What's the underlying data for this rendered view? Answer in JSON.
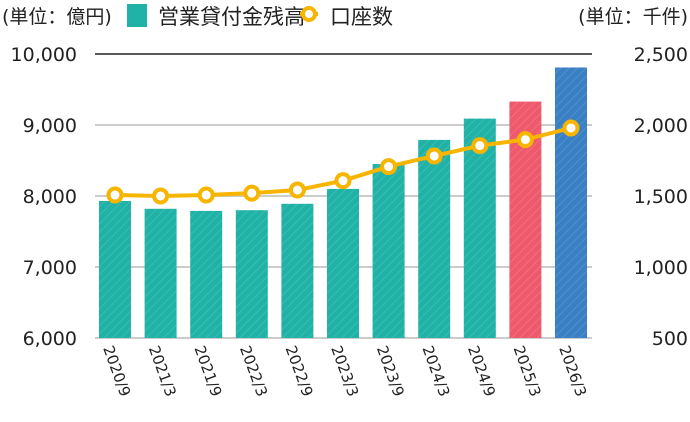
{
  "chart_data": {
    "type": "bar+line",
    "left_unit": "(単位：億円)",
    "right_unit": "(単位：千件)",
    "categories": [
      "2020/9",
      "2021/3",
      "2021/9",
      "2022/3",
      "2022/9",
      "2023/3",
      "2023/9",
      "2024/3",
      "2024/9",
      "2025/3",
      "2026/3"
    ],
    "series": [
      {
        "name": "営業貸付金残高",
        "type": "bar",
        "axis": "left",
        "values": [
          7930,
          7820,
          7790,
          7800,
          7890,
          8100,
          8450,
          8790,
          9090,
          9330,
          9810
        ],
        "colors": [
          "#20b2a6",
          "#20b2a6",
          "#20b2a6",
          "#20b2a6",
          "#20b2a6",
          "#20b2a6",
          "#20b2a6",
          "#20b2a6",
          "#20b2a6",
          "#ee5a6c",
          "#3a80c4"
        ]
      },
      {
        "name": "口座数",
        "type": "line",
        "axis": "right",
        "values": [
          1507,
          1500,
          1507,
          1520,
          1542,
          1608,
          1707,
          1782,
          1855,
          1897,
          1979
        ],
        "color": "#f7b500"
      }
    ],
    "left_axis": {
      "range": [
        6000,
        10000
      ],
      "ticks": [
        "6,000",
        "7,000",
        "8,000",
        "9,000",
        "10,000"
      ]
    },
    "right_axis": {
      "range": [
        500,
        2500
      ],
      "ticks": [
        "500",
        "1,000",
        "1,500",
        "2,000",
        "2,500"
      ]
    },
    "grid": true,
    "legend_placement": "top"
  }
}
